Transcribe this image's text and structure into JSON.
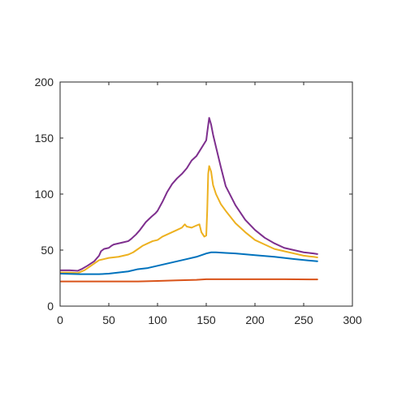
{
  "chart_data": {
    "type": "line",
    "title": "",
    "xlabel": "",
    "ylabel": "",
    "xlim": [
      0,
      300
    ],
    "ylim": [
      0,
      200
    ],
    "grid": false,
    "box": true,
    "xticks": [
      0,
      50,
      100,
      150,
      200,
      250,
      300
    ],
    "yticks": [
      0,
      50,
      100,
      150,
      200
    ],
    "xtick_labels": [
      "0",
      "50",
      "100",
      "150",
      "200",
      "250",
      "300"
    ],
    "ytick_labels": [
      "0",
      "50",
      "100",
      "150",
      "200"
    ],
    "series": [
      {
        "color": "#7E2F8E",
        "points": [
          [
            1,
            32
          ],
          [
            10,
            32
          ],
          [
            18,
            31.5
          ],
          [
            22,
            33
          ],
          [
            28,
            36
          ],
          [
            35,
            40
          ],
          [
            40,
            45
          ],
          [
            42,
            49
          ],
          [
            45,
            51
          ],
          [
            50,
            52
          ],
          [
            53,
            54
          ],
          [
            55,
            55
          ],
          [
            60,
            56
          ],
          [
            65,
            57
          ],
          [
            70,
            58
          ],
          [
            73,
            60
          ],
          [
            78,
            64
          ],
          [
            82,
            68
          ],
          [
            88,
            75
          ],
          [
            94,
            80
          ],
          [
            98,
            83
          ],
          [
            100,
            85
          ],
          [
            105,
            93
          ],
          [
            110,
            102
          ],
          [
            115,
            109
          ],
          [
            120,
            114
          ],
          [
            125,
            118
          ],
          [
            130,
            123
          ],
          [
            135,
            130
          ],
          [
            140,
            134
          ],
          [
            145,
            141
          ],
          [
            150,
            148
          ],
          [
            151,
            155
          ],
          [
            153,
            168
          ],
          [
            155,
            162
          ],
          [
            157,
            153
          ],
          [
            160,
            142
          ],
          [
            165,
            124
          ],
          [
            170,
            107
          ],
          [
            180,
            90
          ],
          [
            190,
            77
          ],
          [
            200,
            68
          ],
          [
            210,
            61
          ],
          [
            220,
            56
          ],
          [
            230,
            52
          ],
          [
            240,
            50
          ],
          [
            250,
            48
          ],
          [
            260,
            47
          ],
          [
            264,
            46.5
          ]
        ]
      },
      {
        "color": "#EDB120",
        "points": [
          [
            1,
            30
          ],
          [
            10,
            30
          ],
          [
            18,
            29.5
          ],
          [
            25,
            32
          ],
          [
            30,
            35
          ],
          [
            35,
            38
          ],
          [
            40,
            41
          ],
          [
            45,
            42
          ],
          [
            50,
            43
          ],
          [
            60,
            44
          ],
          [
            65,
            45
          ],
          [
            70,
            46
          ],
          [
            75,
            48
          ],
          [
            80,
            51
          ],
          [
            85,
            54
          ],
          [
            90,
            56
          ],
          [
            95,
            58
          ],
          [
            100,
            59
          ],
          [
            105,
            62
          ],
          [
            110,
            64
          ],
          [
            115,
            66
          ],
          [
            120,
            68
          ],
          [
            125,
            70
          ],
          [
            128,
            73
          ],
          [
            130,
            71
          ],
          [
            135,
            70
          ],
          [
            140,
            72
          ],
          [
            143,
            73
          ],
          [
            145,
            66
          ],
          [
            148,
            62
          ],
          [
            150,
            63
          ],
          [
            151,
            85
          ],
          [
            152,
            118
          ],
          [
            153,
            125
          ],
          [
            155,
            120
          ],
          [
            157,
            108
          ],
          [
            160,
            100
          ],
          [
            165,
            91
          ],
          [
            170,
            85
          ],
          [
            180,
            74
          ],
          [
            190,
            66
          ],
          [
            200,
            59
          ],
          [
            210,
            55
          ],
          [
            220,
            51
          ],
          [
            230,
            49
          ],
          [
            240,
            47
          ],
          [
            250,
            45
          ],
          [
            260,
            44
          ],
          [
            264,
            43.5
          ]
        ]
      },
      {
        "color": "#0072BD",
        "points": [
          [
            1,
            29
          ],
          [
            20,
            28.5
          ],
          [
            40,
            28.5
          ],
          [
            50,
            29
          ],
          [
            60,
            30
          ],
          [
            70,
            31
          ],
          [
            80,
            33
          ],
          [
            90,
            34
          ],
          [
            100,
            36
          ],
          [
            110,
            38
          ],
          [
            120,
            40
          ],
          [
            130,
            42
          ],
          [
            140,
            44
          ],
          [
            150,
            47
          ],
          [
            155,
            48
          ],
          [
            160,
            48
          ],
          [
            170,
            47.5
          ],
          [
            180,
            47
          ],
          [
            200,
            45.5
          ],
          [
            220,
            44
          ],
          [
            240,
            42
          ],
          [
            264,
            40
          ]
        ]
      },
      {
        "color": "#D95319",
        "points": [
          [
            1,
            22
          ],
          [
            40,
            22
          ],
          [
            80,
            22
          ],
          [
            100,
            22.5
          ],
          [
            120,
            23
          ],
          [
            140,
            23.5
          ],
          [
            150,
            24
          ],
          [
            160,
            24
          ],
          [
            200,
            24
          ],
          [
            230,
            24
          ],
          [
            264,
            23.8
          ]
        ]
      }
    ]
  }
}
